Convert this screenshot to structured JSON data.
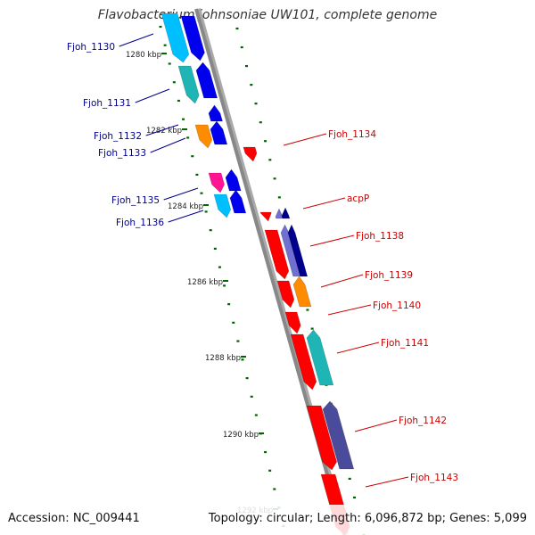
{
  "title": "Flavobacterium johnsoniae UW101, complete genome",
  "footer": {
    "accession": "Accession: NC_009441",
    "info": "Topology: circular; Length: 6,096,872 bp; Genes: 5,099"
  },
  "colors": {
    "left_labels": "#00008b",
    "right_labels": "#cc0000",
    "ruler_ticks": "#006400",
    "backbone": "#888888"
  },
  "kbp_labels": [
    "1280 kbp",
    "1282 kbp",
    "1284 kbp",
    "1286 kbp",
    "1288 kbp",
    "1290 kbp",
    "1292 kbp"
  ],
  "left_genes": [
    "Fjoh_1130",
    "Fjoh_1131",
    "Fjoh_1132",
    "Fjoh_1133",
    "Fjoh_1135",
    "Fjoh_1136"
  ],
  "right_genes": [
    "Fjoh_1134",
    "acpP",
    "Fjoh_1138",
    "Fjoh_1139",
    "Fjoh_1140",
    "Fjoh_1141",
    "Fjoh_1142",
    "Fjoh_1143"
  ]
}
